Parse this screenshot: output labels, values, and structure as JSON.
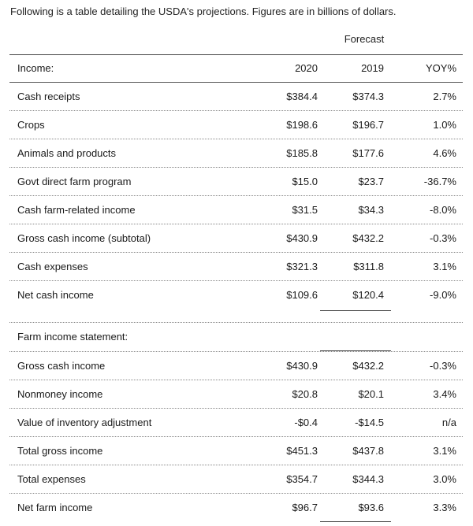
{
  "intro": "Following is a table detailing the USDA's projections. Figures are in billions of dollars.",
  "forecast_label": "Forecast",
  "header": {
    "label": "Income:",
    "col1": "2020",
    "col2": "2019",
    "col3": "YOY%"
  },
  "income_rows": [
    {
      "label": "Cash receipts",
      "v2020": "$384.4",
      "v2019": "$374.3",
      "yoy": "2.7%"
    },
    {
      "label": "Crops",
      "v2020": "$198.6",
      "v2019": "$196.7",
      "yoy": "1.0%"
    },
    {
      "label": "Animals and products",
      "v2020": "$185.8",
      "v2019": "$177.6",
      "yoy": "4.6%"
    },
    {
      "label": "Govt direct farm program",
      "v2020": "$15.0",
      "v2019": "$23.7",
      "yoy": "-36.7%"
    },
    {
      "label": "Cash farm-related income",
      "v2020": "$31.5",
      "v2019": "$34.3",
      "yoy": "-8.0%"
    },
    {
      "label": "Gross cash income (subtotal)",
      "v2020": "$430.9",
      "v2019": "$432.2",
      "yoy": "-0.3%"
    },
    {
      "label": "Cash expenses",
      "v2020": "$321.3",
      "v2019": "$311.8",
      "yoy": "3.1%"
    },
    {
      "label": "Net cash income",
      "v2020": "$109.6",
      "v2019": "$120.4",
      "yoy": "-9.0%"
    }
  ],
  "section2_label": "Farm income statement:",
  "statement_rows": [
    {
      "label": "Gross cash income",
      "v2020": "$430.9",
      "v2019": "$432.2",
      "yoy": "-0.3%"
    },
    {
      "label": "Nonmoney income",
      "v2020": "$20.8",
      "v2019": "$20.1",
      "yoy": "3.4%"
    },
    {
      "label": "Value of inventory adjustment",
      "v2020": "-$0.4",
      "v2019": "-$14.5",
      "yoy": "n/a"
    },
    {
      "label": "Total gross income",
      "v2020": "$451.3",
      "v2019": "$437.8",
      "yoy": "3.1%"
    },
    {
      "label": "Total expenses",
      "v2020": "$354.7",
      "v2019": "$344.3",
      "yoy": "3.0%"
    },
    {
      "label": "Net farm income",
      "v2020": "$96.7",
      "v2019": "$93.6",
      "yoy": "3.3%"
    }
  ]
}
